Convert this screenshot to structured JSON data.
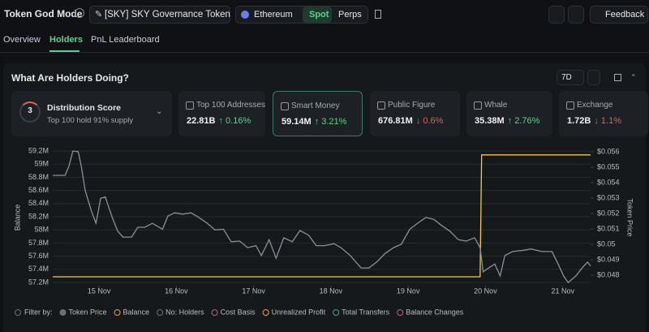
{
  "header": {
    "title": "Token God Mode",
    "token": "[SKY] SKY Governance Token",
    "chain": "Ethereum",
    "modes": [
      "Spot",
      "Perps"
    ],
    "feedback": "Feedback"
  },
  "tabs": [
    "Overview",
    "Holders",
    "PnL Leaderboard"
  ],
  "panel": {
    "title": "What Are Holders Doing?",
    "period": "7D"
  },
  "distribution": {
    "label": "Distribution Score",
    "score": "3",
    "note": "Top 100 hold 91% supply"
  },
  "metrics": [
    {
      "label": "Top 100 Addresses",
      "value": "22.81B",
      "change": "↑ 0.16%"
    },
    {
      "label": "Smart Money",
      "value": "59.14M",
      "change": "↑ 3.21%"
    },
    {
      "label": "Public Figure",
      "value": "676.81M",
      "change": "↓ 0.6%"
    },
    {
      "label": "Whale",
      "value": "35.38M",
      "change": "↑ 2.76%"
    },
    {
      "label": "Exchange",
      "value": "1.72B",
      "change": "↓ 1.1%"
    }
  ],
  "chart_data": {
    "type": "line",
    "y_label": "Balance",
    "y2_label": "Token Price",
    "grid": true,
    "xlim": [
      14.4,
      21.36
    ],
    "xticks": [
      {
        "value": 15,
        "label": "15 Nov"
      },
      {
        "value": 16,
        "label": "16 Nov"
      },
      {
        "value": 17,
        "label": "17 Nov"
      },
      {
        "value": 18,
        "label": "18 Nov"
      },
      {
        "value": 19,
        "label": "19 Nov"
      },
      {
        "value": 20,
        "label": "20 Nov"
      },
      {
        "value": 21,
        "label": "21 Nov"
      }
    ],
    "ylim": [
      57150000,
      59275000
    ],
    "yticks": [
      {
        "value": 57200000,
        "label": "57.2M"
      },
      {
        "value": 57400000,
        "label": "57.4M"
      },
      {
        "value": 57600000,
        "label": "57.6M"
      },
      {
        "value": 57800000,
        "label": "57.8M"
      },
      {
        "value": 58000000,
        "label": "58M"
      },
      {
        "value": 58200000,
        "label": "58.2M"
      },
      {
        "value": 58400000,
        "label": "58.4M"
      },
      {
        "value": 58600000,
        "label": "58.6M"
      },
      {
        "value": 58800000,
        "label": "58.8M"
      },
      {
        "value": 59000000,
        "label": "59M"
      },
      {
        "value": 59200000,
        "label": "59.2M"
      }
    ],
    "y2lim": [
      0.04732,
      0.05637
    ],
    "y2ticks": [
      {
        "value": 0.048,
        "label": "$0.048"
      },
      {
        "value": 0.049,
        "label": "$0.049"
      },
      {
        "value": 0.05,
        "label": "$0.05"
      },
      {
        "value": 0.051,
        "label": "$0.051"
      },
      {
        "value": 0.052,
        "label": "$0.052"
      },
      {
        "value": 0.053,
        "label": "$0.053"
      },
      {
        "value": 0.054,
        "label": "$0.054"
      },
      {
        "value": 0.055,
        "label": "$0.055"
      },
      {
        "value": 0.056,
        "label": "$0.056"
      }
    ],
    "series": [
      {
        "name": "Token Price",
        "color": "#f2c94c",
        "legend_color": "#6b7078",
        "axis": "y2",
        "x": [
          14.4,
          19.93,
          19.95,
          21.36
        ],
        "values": [
          0.0479,
          0.0479,
          0.0558,
          0.0558
        ]
      },
      {
        "name": "Balance",
        "color": "#8a8f98",
        "legend_color": "#e8a33d",
        "x": [
          14.4,
          14.56,
          14.61,
          14.66,
          14.73,
          14.77,
          14.82,
          14.9,
          14.96,
          15.02,
          15.08,
          15.17,
          15.24,
          15.31,
          15.42,
          15.5,
          15.59,
          15.69,
          15.82,
          15.89,
          15.98,
          16.08,
          16.19,
          16.29,
          16.4,
          16.5,
          16.61,
          16.71,
          16.82,
          16.92,
          17.03,
          17.1,
          17.2,
          17.29,
          17.39,
          17.5,
          17.6,
          17.71,
          17.81,
          17.92,
          18.04,
          18.13,
          18.25,
          18.39,
          18.49,
          18.6,
          18.7,
          18.81,
          18.91,
          19.02,
          19.12,
          19.23,
          19.33,
          19.44,
          19.54,
          19.65,
          19.75,
          19.86,
          19.93,
          19.97,
          20.04,
          20.12,
          20.19,
          20.25,
          20.35,
          20.49,
          20.59,
          20.73,
          20.86,
          20.94,
          21.01,
          21.07,
          21.17,
          21.25,
          21.32,
          21.36
        ],
        "values": [
          58830000,
          58830000,
          58970000,
          59200000,
          59190000,
          58970000,
          58600000,
          58290000,
          58100000,
          58480000,
          58500000,
          58190000,
          57980000,
          57890000,
          57890000,
          58040000,
          58040000,
          58100000,
          58010000,
          58210000,
          58260000,
          58240000,
          58260000,
          58190000,
          58100000,
          58000000,
          58010000,
          57820000,
          57830000,
          57730000,
          57760000,
          57610000,
          57850000,
          57570000,
          57880000,
          57820000,
          57990000,
          57920000,
          57760000,
          57760000,
          57790000,
          57730000,
          57610000,
          57420000,
          57420000,
          57520000,
          57640000,
          57730000,
          57780000,
          58010000,
          58100000,
          58190000,
          58160000,
          58060000,
          57980000,
          57850000,
          57830000,
          57880000,
          57730000,
          57360000,
          57420000,
          57480000,
          57300000,
          57610000,
          57670000,
          57690000,
          57710000,
          57670000,
          57670000,
          57480000,
          57300000,
          57200000,
          57300000,
          57420000,
          57510000,
          57450000
        ]
      }
    ],
    "filters": {
      "label": "Filter by:",
      "items": [
        {
          "name": "No: Holders",
          "color": "#6b7078"
        },
        {
          "name": "Cost Basis",
          "color": "#c05a8a"
        },
        {
          "name": "Unrealized Profit",
          "color": "#e8a33d"
        },
        {
          "name": "Total Transfers",
          "color": "#3aa6a0"
        },
        {
          "name": "Balance Changes",
          "color": "#c05a8a"
        }
      ]
    }
  }
}
